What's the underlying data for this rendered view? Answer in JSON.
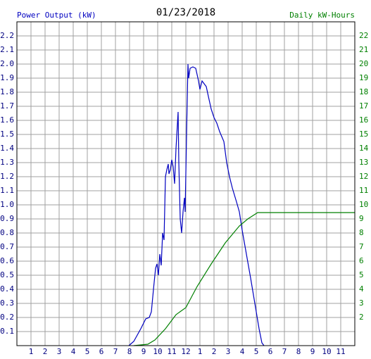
{
  "chart_data": {
    "type": "line",
    "title": "01/23/2018",
    "y_label": "Power Output (kW)",
    "y2_label": "Daily kW-Hours",
    "xlim": [
      0,
      24
    ],
    "xticks": [
      1,
      2,
      3,
      4,
      5,
      6,
      7,
      8,
      9,
      10,
      11,
      12,
      {
        "value": 13,
        "label": "1"
      },
      {
        "value": 14,
        "label": "2"
      },
      {
        "value": 15,
        "label": "3"
      },
      {
        "value": 16,
        "label": "4"
      },
      {
        "value": 17,
        "label": "5"
      },
      {
        "value": 18,
        "label": "6"
      },
      {
        "value": 19,
        "label": "7"
      },
      {
        "value": 20,
        "label": "8"
      },
      {
        "value": 21,
        "label": "9"
      },
      {
        "value": 22,
        "label": "10"
      },
      {
        "value": 23,
        "label": "11"
      }
    ],
    "ylim": [
      0,
      2.3
    ],
    "yticks": [
      {
        "value": 0.1,
        "label": "0.1"
      },
      {
        "value": 0.2,
        "label": "0.2"
      },
      {
        "value": 0.3,
        "label": "0.3"
      },
      {
        "value": 0.4,
        "label": "0.4"
      },
      {
        "value": 0.5,
        "label": "0.5"
      },
      {
        "value": 0.6,
        "label": "0.6"
      },
      {
        "value": 0.7,
        "label": "0.7"
      },
      {
        "value": 0.8,
        "label": "0.8"
      },
      {
        "value": 0.9,
        "label": "0.9"
      },
      {
        "value": 1,
        "label": "1.0"
      },
      {
        "value": 1.1,
        "label": "1.1"
      },
      {
        "value": 1.2,
        "label": "1.2"
      },
      {
        "value": 1.3,
        "label": "1.3"
      },
      {
        "value": 1.4,
        "label": "1.4"
      },
      {
        "value": 1.5,
        "label": "1.5"
      },
      {
        "value": 1.6,
        "label": "1.6"
      },
      {
        "value": 1.7,
        "label": "1.7"
      },
      {
        "value": 1.8,
        "label": "1.8"
      },
      {
        "value": 1.9,
        "label": "1.9"
      },
      {
        "value": 2,
        "label": "2.0"
      },
      {
        "value": 2.1,
        "label": "2.1"
      },
      {
        "value": 2.2,
        "label": "2.2"
      }
    ],
    "y2lim": [
      0,
      23
    ],
    "y2ticks": [
      2,
      3,
      4,
      5,
      6,
      7,
      8,
      9,
      10,
      11,
      12,
      13,
      14,
      15,
      16,
      17,
      18,
      19,
      20,
      21,
      22
    ],
    "grid": true,
    "series": [
      {
        "name": "Power Output (kW)",
        "color": "#0000c0",
        "x": [
          7.95,
          8.3,
          8.8,
          9.15,
          9.4,
          9.55,
          9.7,
          9.85,
          9.95,
          10.05,
          10.15,
          10.25,
          10.35,
          10.45,
          10.55,
          10.65,
          10.75,
          10.8,
          10.9,
          11.0,
          11.1,
          11.2,
          11.3,
          11.45,
          11.5,
          11.6,
          11.7,
          11.8,
          11.9,
          11.95,
          12.05,
          12.15,
          12.2,
          12.3,
          12.5,
          12.7,
          12.9,
          13.0,
          13.15,
          13.3,
          13.45,
          13.6,
          13.8,
          14.0,
          14.2,
          14.4,
          14.7,
          14.9,
          15.1,
          15.3,
          15.6,
          15.8,
          16.0,
          16.3,
          16.6,
          16.9,
          17.2,
          17.4,
          17.55
        ],
        "values": [
          0,
          0.03,
          0.12,
          0.19,
          0.2,
          0.24,
          0.4,
          0.55,
          0.58,
          0.5,
          0.65,
          0.57,
          0.8,
          0.75,
          1.2,
          1.25,
          1.29,
          1.22,
          1.25,
          1.32,
          1.27,
          1.15,
          1.4,
          1.66,
          1.3,
          0.9,
          0.8,
          0.95,
          1.05,
          0.95,
          1.5,
          2.0,
          1.9,
          1.97,
          1.98,
          1.97,
          1.88,
          1.82,
          1.88,
          1.86,
          1.84,
          1.77,
          1.68,
          1.62,
          1.58,
          1.52,
          1.45,
          1.3,
          1.2,
          1.12,
          1.02,
          0.95,
          0.82,
          0.65,
          0.48,
          0.3,
          0.12,
          0.02,
          0
        ]
      },
      {
        "name": "Daily kW-Hours",
        "color": "#008000",
        "axis": "y2",
        "x": [
          8.3,
          8.8,
          9.3,
          9.8,
          10.55,
          11.3,
          12.0,
          12.8,
          13.8,
          14.8,
          15.8,
          16.4,
          17.1,
          24
        ],
        "values": [
          0,
          0.05,
          0.1,
          0.4,
          1.2,
          2.2,
          2.7,
          4.2,
          5.8,
          7.3,
          8.5,
          9.0,
          9.45,
          9.45
        ]
      }
    ]
  }
}
